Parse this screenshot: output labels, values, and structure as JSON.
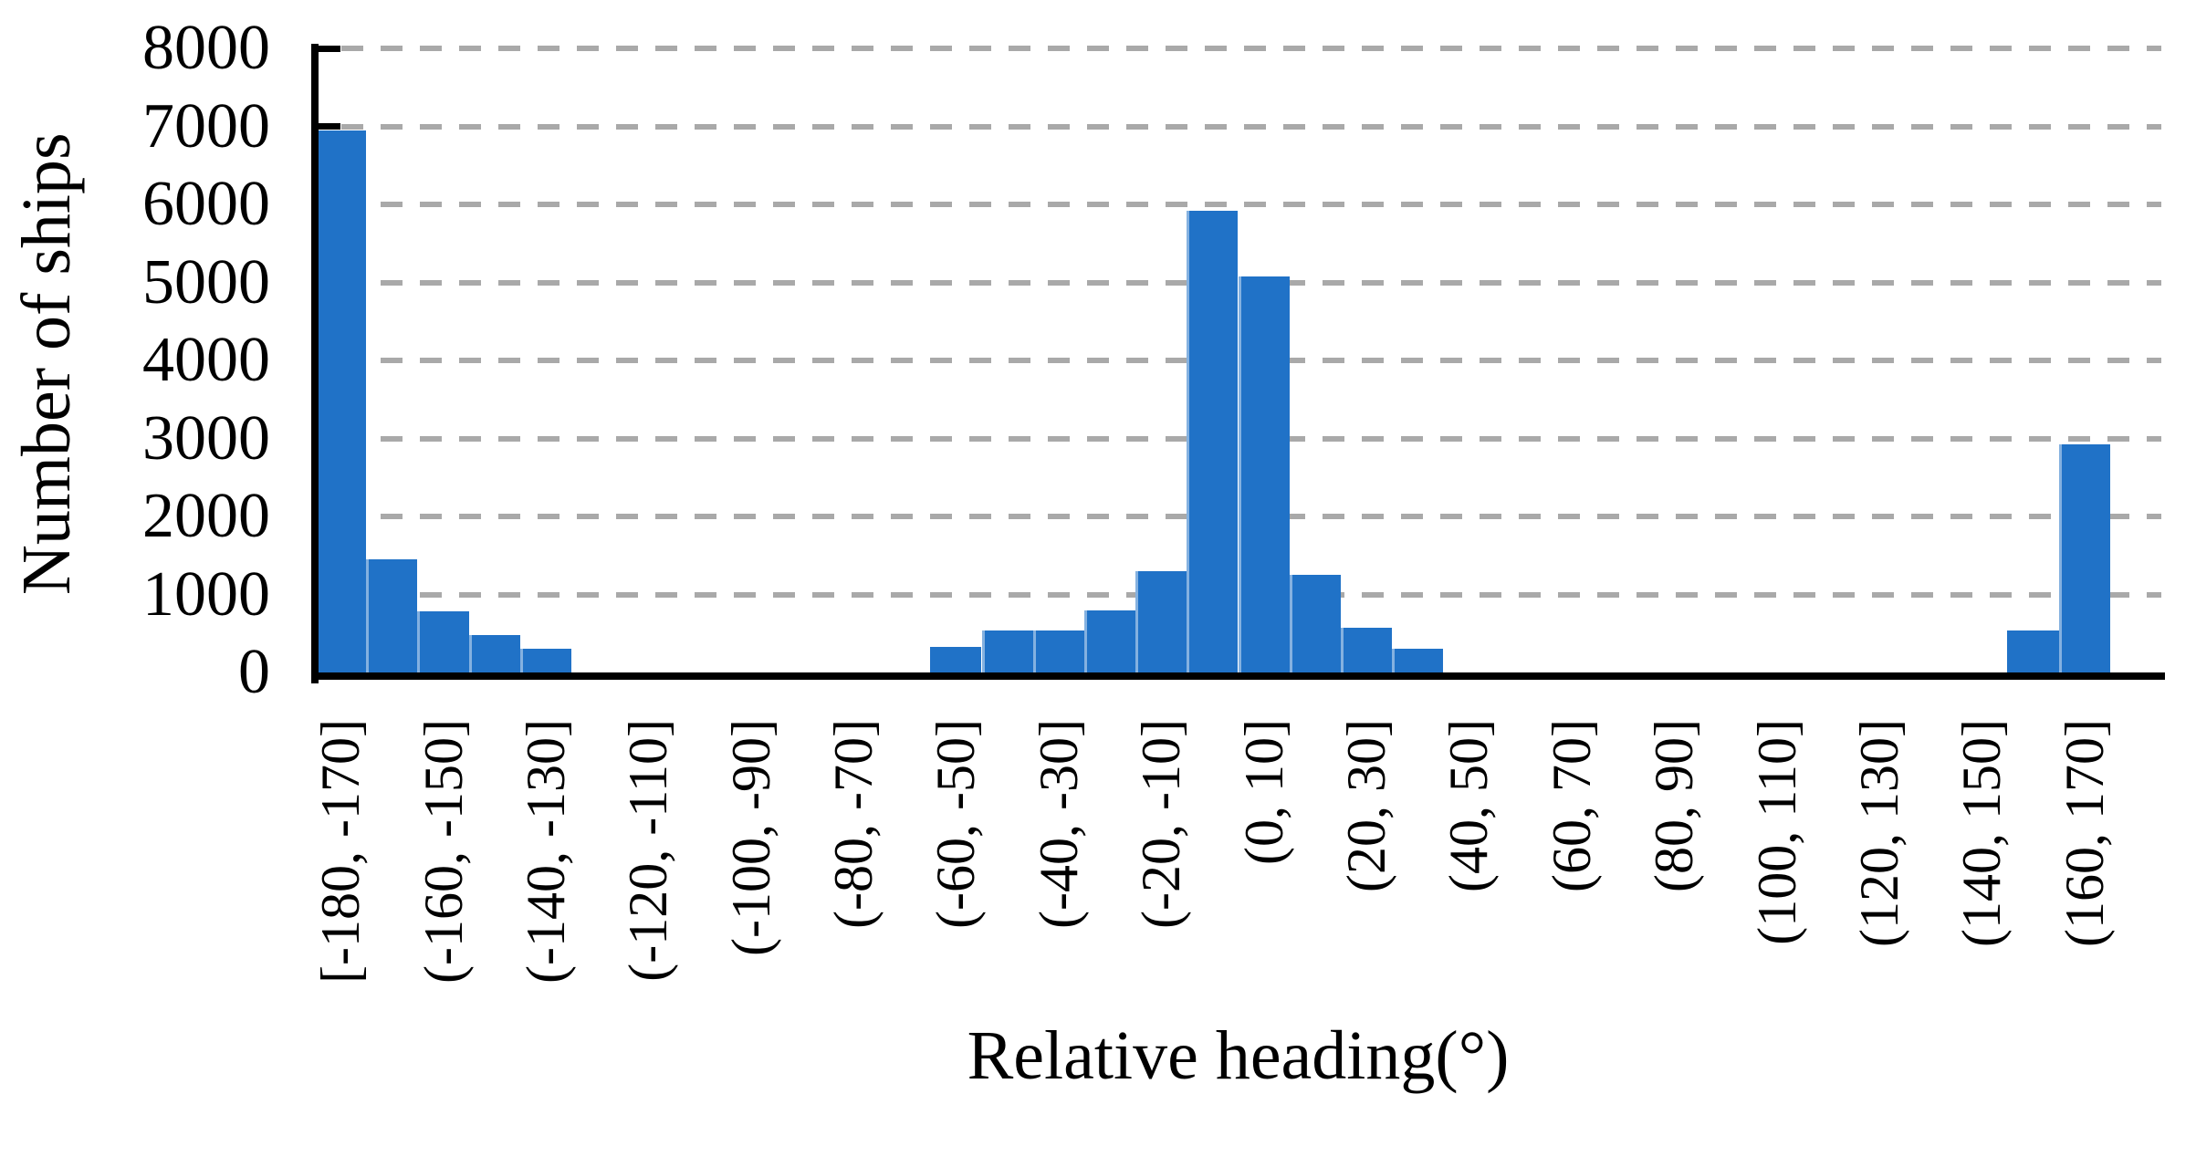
{
  "chart_data": {
    "type": "bar",
    "title": "",
    "xlabel": "Relative heading(°)",
    "ylabel": "Number of ships",
    "ylim": [
      0,
      8000
    ],
    "ytick_step": 1000,
    "yticks": [
      0,
      1000,
      2000,
      3000,
      4000,
      5000,
      6000,
      7000,
      8000
    ],
    "x_range_deg": [
      -180,
      180
    ],
    "bin_width_deg": 10,
    "xtick_label_shown_every": 2,
    "grid": "horizontal dashed gridlines at each 1000",
    "legend": "none",
    "bar_color": "#2072c7",
    "gridline_color": "#a9a9a9",
    "axis_color": "#000000",
    "categories": [
      "[-180, -170]",
      "(-170, -160]",
      "(-160, -150]",
      "(-150, -140]",
      "(-140, -130]",
      "(-130, -120]",
      "(-120, -110]",
      "(-110, -100]",
      "(-100, -90]",
      "(-90, -80]",
      "(-80, -70]",
      "(-70, -60]",
      "(-60, -50]",
      "(-50, -40]",
      "(-40, -30]",
      "(-30, -20]",
      "(-20, -10]",
      "(-10, 0]",
      "(0, 10]",
      "(10, 20]",
      "(20, 30]",
      "(30, 40]",
      "(40, 50]",
      "(50, 60]",
      "(60, 70]",
      "(70, 80]",
      "(80, 90]",
      "(90, 100]",
      "(100, 110]",
      "(110, 120]",
      "(120, 130]",
      "(130, 140]",
      "(140, 150]",
      "(150, 160]",
      "(160, 170]",
      "(170, 180]"
    ],
    "values": [
      6950,
      1450,
      780,
      480,
      310,
      0,
      0,
      0,
      0,
      0,
      0,
      0,
      330,
      540,
      540,
      800,
      1300,
      5920,
      5080,
      1250,
      570,
      300,
      0,
      0,
      0,
      0,
      0,
      0,
      0,
      0,
      0,
      0,
      0,
      540,
      2920,
      0
    ]
  }
}
